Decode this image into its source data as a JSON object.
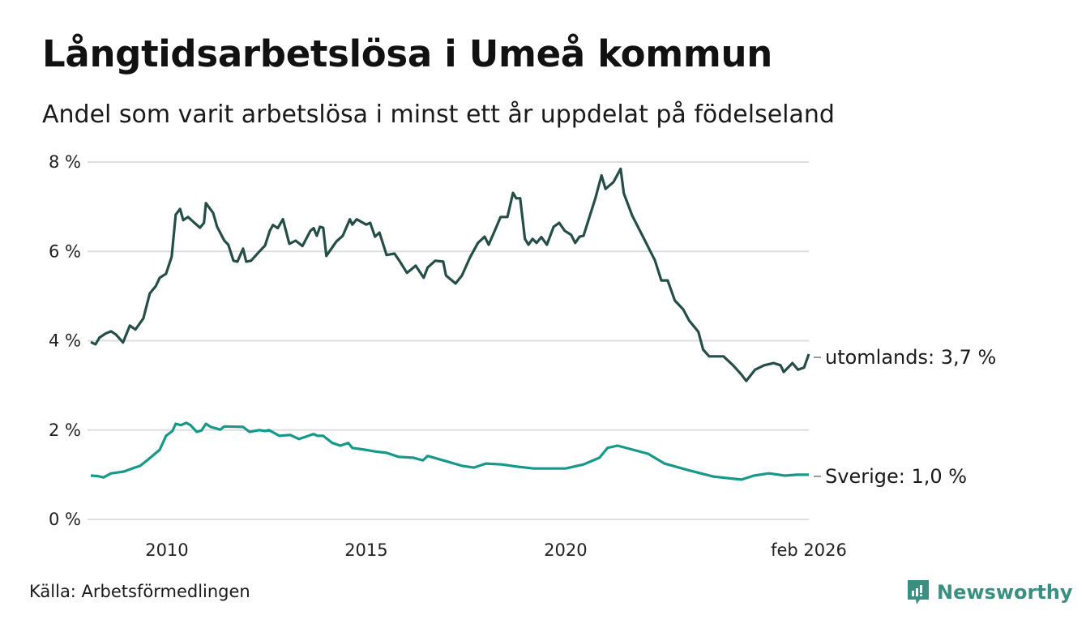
{
  "title": "Långtidsarbetslösa i Umeå kommun",
  "subtitle": "Andel som varit arbetslösa i minst ett år uppdelat på födelseland",
  "source": "Källa: Arbetsförmedlingen",
  "brand": "Newsworthy",
  "colors": {
    "utomlands": "#254e47",
    "sverige": "#17998a",
    "brand": "#3a8f80"
  },
  "chart_data": {
    "type": "line",
    "title": "Långtidsarbetslösa i Umeå kommun",
    "xlabel": "",
    "ylabel": "",
    "xlim": [
      2008.05,
      2026.1
    ],
    "ylim": [
      0,
      8
    ],
    "grid": true,
    "y_ticks": [
      {
        "v": 0,
        "label": "0 %"
      },
      {
        "v": 2,
        "label": "2 %"
      },
      {
        "v": 4,
        "label": "4 %"
      },
      {
        "v": 6,
        "label": "6 %"
      },
      {
        "v": 8,
        "label": "8 %"
      }
    ],
    "x_ticks": [
      {
        "v": 2010,
        "label": "2010"
      },
      {
        "v": 2015,
        "label": "2015"
      },
      {
        "v": 2020,
        "label": "2020"
      },
      {
        "v": 2026.1,
        "label": "feb 2026"
      }
    ],
    "series": [
      {
        "name": "utomlands",
        "end_label": "utomlands: 3,7 %",
        "points": [
          [
            2008.09,
            3.97
          ],
          [
            2008.21,
            3.92
          ],
          [
            2008.31,
            4.07
          ],
          [
            2008.46,
            4.16
          ],
          [
            2008.6,
            4.21
          ],
          [
            2008.72,
            4.14
          ],
          [
            2008.9,
            3.96
          ],
          [
            2009.07,
            4.34
          ],
          [
            2009.21,
            4.25
          ],
          [
            2009.41,
            4.5
          ],
          [
            2009.57,
            5.06
          ],
          [
            2009.72,
            5.22
          ],
          [
            2009.82,
            5.41
          ],
          [
            2009.98,
            5.5
          ],
          [
            2010.12,
            5.88
          ],
          [
            2010.22,
            6.82
          ],
          [
            2010.33,
            6.95
          ],
          [
            2010.41,
            6.7
          ],
          [
            2010.53,
            6.77
          ],
          [
            2010.69,
            6.64
          ],
          [
            2010.83,
            6.53
          ],
          [
            2010.93,
            6.64
          ],
          [
            2010.98,
            7.08
          ],
          [
            2011.16,
            6.86
          ],
          [
            2011.26,
            6.55
          ],
          [
            2011.44,
            6.24
          ],
          [
            2011.54,
            6.15
          ],
          [
            2011.67,
            5.79
          ],
          [
            2011.77,
            5.77
          ],
          [
            2011.91,
            6.06
          ],
          [
            2011.99,
            5.77
          ],
          [
            2012.11,
            5.79
          ],
          [
            2012.32,
            6.0
          ],
          [
            2012.46,
            6.13
          ],
          [
            2012.58,
            6.46
          ],
          [
            2012.66,
            6.59
          ],
          [
            2012.78,
            6.52
          ],
          [
            2012.91,
            6.72
          ],
          [
            2013.07,
            6.17
          ],
          [
            2013.23,
            6.24
          ],
          [
            2013.4,
            6.12
          ],
          [
            2013.6,
            6.46
          ],
          [
            2013.68,
            6.52
          ],
          [
            2013.76,
            6.35
          ],
          [
            2013.84,
            6.55
          ],
          [
            2013.92,
            6.53
          ],
          [
            2014.0,
            5.9
          ],
          [
            2014.25,
            6.22
          ],
          [
            2014.41,
            6.35
          ],
          [
            2014.59,
            6.72
          ],
          [
            2014.65,
            6.6
          ],
          [
            2014.76,
            6.72
          ],
          [
            2015.0,
            6.6
          ],
          [
            2015.1,
            6.64
          ],
          [
            2015.22,
            6.33
          ],
          [
            2015.33,
            6.42
          ],
          [
            2015.51,
            5.92
          ],
          [
            2015.71,
            5.95
          ],
          [
            2015.83,
            5.79
          ],
          [
            2016.02,
            5.52
          ],
          [
            2016.12,
            5.59
          ],
          [
            2016.24,
            5.68
          ],
          [
            2016.44,
            5.41
          ],
          [
            2016.54,
            5.64
          ],
          [
            2016.73,
            5.79
          ],
          [
            2016.93,
            5.77
          ],
          [
            2017.0,
            5.46
          ],
          [
            2017.24,
            5.28
          ],
          [
            2017.4,
            5.46
          ],
          [
            2017.6,
            5.86
          ],
          [
            2017.8,
            6.19
          ],
          [
            2017.97,
            6.33
          ],
          [
            2018.07,
            6.15
          ],
          [
            2018.25,
            6.52
          ],
          [
            2018.37,
            6.77
          ],
          [
            2018.54,
            6.77
          ],
          [
            2018.68,
            7.31
          ],
          [
            2018.76,
            7.19
          ],
          [
            2018.86,
            7.19
          ],
          [
            2018.98,
            6.28
          ],
          [
            2019.07,
            6.15
          ],
          [
            2019.17,
            6.28
          ],
          [
            2019.27,
            6.19
          ],
          [
            2019.39,
            6.32
          ],
          [
            2019.53,
            6.15
          ],
          [
            2019.7,
            6.55
          ],
          [
            2019.84,
            6.64
          ],
          [
            2019.98,
            6.46
          ],
          [
            2020.14,
            6.37
          ],
          [
            2020.24,
            6.19
          ],
          [
            2020.35,
            6.33
          ],
          [
            2020.45,
            6.35
          ],
          [
            2020.75,
            7.2
          ],
          [
            2020.9,
            7.7
          ],
          [
            2021.0,
            7.4
          ],
          [
            2021.2,
            7.55
          ],
          [
            2021.38,
            7.85
          ],
          [
            2021.46,
            7.3
          ],
          [
            2021.67,
            6.8
          ],
          [
            2021.93,
            6.35
          ],
          [
            2022.24,
            5.8
          ],
          [
            2022.4,
            5.35
          ],
          [
            2022.56,
            5.35
          ],
          [
            2022.74,
            4.9
          ],
          [
            2022.95,
            4.7
          ],
          [
            2023.1,
            4.45
          ],
          [
            2023.33,
            4.2
          ],
          [
            2023.45,
            3.8
          ],
          [
            2023.6,
            3.65
          ],
          [
            2023.8,
            3.65
          ],
          [
            2023.96,
            3.65
          ],
          [
            2024.2,
            3.45
          ],
          [
            2024.4,
            3.25
          ],
          [
            2024.53,
            3.1
          ],
          [
            2024.75,
            3.35
          ],
          [
            2024.98,
            3.45
          ],
          [
            2025.22,
            3.5
          ],
          [
            2025.39,
            3.45
          ],
          [
            2025.47,
            3.3
          ],
          [
            2025.69,
            3.5
          ],
          [
            2025.83,
            3.35
          ],
          [
            2025.98,
            3.4
          ],
          [
            2026.1,
            3.7
          ]
        ]
      },
      {
        "name": "Sverige",
        "end_label": "Sverige: 1,0 %",
        "points": [
          [
            2008.09,
            0.98
          ],
          [
            2008.26,
            0.97
          ],
          [
            2008.41,
            0.94
          ],
          [
            2008.6,
            1.03
          ],
          [
            2008.77,
            1.05
          ],
          [
            2008.92,
            1.07
          ],
          [
            2009.13,
            1.14
          ],
          [
            2009.33,
            1.2
          ],
          [
            2009.53,
            1.34
          ],
          [
            2009.82,
            1.56
          ],
          [
            2009.98,
            1.87
          ],
          [
            2010.14,
            1.98
          ],
          [
            2010.22,
            2.14
          ],
          [
            2010.35,
            2.11
          ],
          [
            2010.49,
            2.16
          ],
          [
            2010.59,
            2.11
          ],
          [
            2010.75,
            1.96
          ],
          [
            2010.87,
            1.99
          ],
          [
            2010.98,
            2.14
          ],
          [
            2011.1,
            2.07
          ],
          [
            2011.34,
            2.01
          ],
          [
            2011.44,
            2.08
          ],
          [
            2011.91,
            2.07
          ],
          [
            2012.07,
            1.96
          ],
          [
            2012.32,
            2.0
          ],
          [
            2012.46,
            1.98
          ],
          [
            2012.56,
            2.0
          ],
          [
            2012.82,
            1.87
          ],
          [
            2013.09,
            1.89
          ],
          [
            2013.31,
            1.8
          ],
          [
            2013.68,
            1.91
          ],
          [
            2013.78,
            1.87
          ],
          [
            2013.92,
            1.87
          ],
          [
            2014.15,
            1.71
          ],
          [
            2014.35,
            1.65
          ],
          [
            2014.55,
            1.71
          ],
          [
            2014.65,
            1.6
          ],
          [
            2014.96,
            1.56
          ],
          [
            2015.22,
            1.52
          ],
          [
            2015.51,
            1.49
          ],
          [
            2015.81,
            1.4
          ],
          [
            2016.18,
            1.38
          ],
          [
            2016.42,
            1.32
          ],
          [
            2016.54,
            1.42
          ],
          [
            2016.93,
            1.32
          ],
          [
            2017.4,
            1.2
          ],
          [
            2017.7,
            1.16
          ],
          [
            2018.0,
            1.25
          ],
          [
            2018.4,
            1.23
          ],
          [
            2018.8,
            1.18
          ],
          [
            2019.2,
            1.14
          ],
          [
            2019.6,
            1.14
          ],
          [
            2020.0,
            1.14
          ],
          [
            2020.45,
            1.23
          ],
          [
            2020.85,
            1.38
          ],
          [
            2021.05,
            1.6
          ],
          [
            2021.3,
            1.65
          ],
          [
            2022.07,
            1.47
          ],
          [
            2022.48,
            1.25
          ],
          [
            2023.09,
            1.1
          ],
          [
            2023.7,
            0.96
          ],
          [
            2024.41,
            0.89
          ],
          [
            2024.72,
            0.98
          ],
          [
            2025.1,
            1.03
          ],
          [
            2025.5,
            0.98
          ],
          [
            2025.8,
            1.0
          ],
          [
            2026.1,
            1.0
          ]
        ]
      }
    ]
  }
}
